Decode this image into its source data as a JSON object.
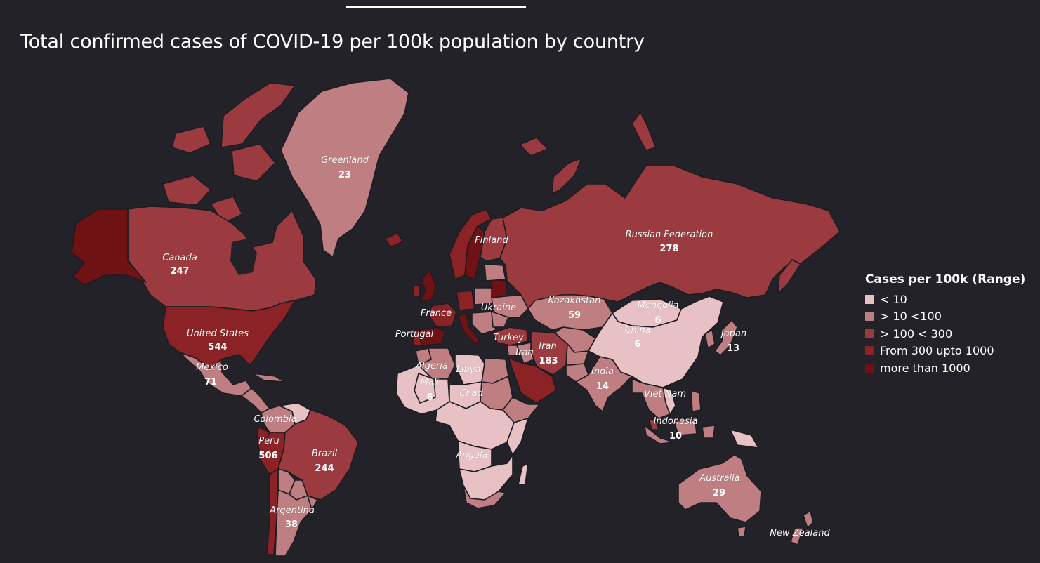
{
  "title": "Total confirmed cases of COVID-19 per 100k population by country",
  "colors": {
    "background": "#222228",
    "lt10": "#e7c1c3",
    "r10_100": "#bf7f82",
    "r100_300": "#9c3b3f",
    "r300_1000": "#8a2226",
    "gt1000": "#6e1214"
  },
  "legend": {
    "title": "Cases per 100k (Range)",
    "items": [
      {
        "label": "< 10",
        "color": "#e7c1c3"
      },
      {
        "label": "> 10 <100",
        "color": "#bf7f82"
      },
      {
        "label": "> 100 < 300",
        "color": "#9c3b3f"
      },
      {
        "label": "From 300  upto 1000",
        "color": "#8a2226"
      },
      {
        "label": "more than 1000",
        "color": "#6e1214"
      }
    ]
  },
  "countries": {
    "greenland": {
      "name": "Greenland",
      "value": "23"
    },
    "canada": {
      "name": "Canada",
      "value": "247"
    },
    "united_states": {
      "name": "United States",
      "value": "544"
    },
    "mexico": {
      "name": "Mexico",
      "value": "71"
    },
    "colombia": {
      "name": "Colombia"
    },
    "peru": {
      "name": "Peru",
      "value": "506"
    },
    "brazil": {
      "name": "Brazil",
      "value": "244"
    },
    "argentina": {
      "name": "Argentina",
      "value": "38"
    },
    "finland": {
      "name": "Finland"
    },
    "france": {
      "name": "France"
    },
    "portugal": {
      "name": "Portugal"
    },
    "ukraine": {
      "name": "Ukraine"
    },
    "turkey": {
      "name": "Turkey"
    },
    "iraq": {
      "name": "Iraq"
    },
    "iran": {
      "name": "Iran",
      "value": "183"
    },
    "algeria": {
      "name": "Algeria"
    },
    "libya": {
      "name": "Libya"
    },
    "mali": {
      "name": "Mali",
      "value": "6"
    },
    "chad": {
      "name": "Chad"
    },
    "angola": {
      "name": "Angola"
    },
    "russia": {
      "name": "Russian Federation",
      "value": "278"
    },
    "kazakhstan": {
      "name": "Kazakhstan",
      "value": "59"
    },
    "mongolia": {
      "name": "Mongolia",
      "value": "6"
    },
    "china": {
      "name": "China",
      "value": "6"
    },
    "japan": {
      "name": "Japan",
      "value": "13"
    },
    "india": {
      "name": "India",
      "value": "14"
    },
    "vietnam": {
      "name": "Viet Nam"
    },
    "indonesia": {
      "name": "Indonesia",
      "value": "10"
    },
    "australia": {
      "name": "Australia",
      "value": "29"
    },
    "new_zealand": {
      "name": "New Zealand"
    }
  }
}
